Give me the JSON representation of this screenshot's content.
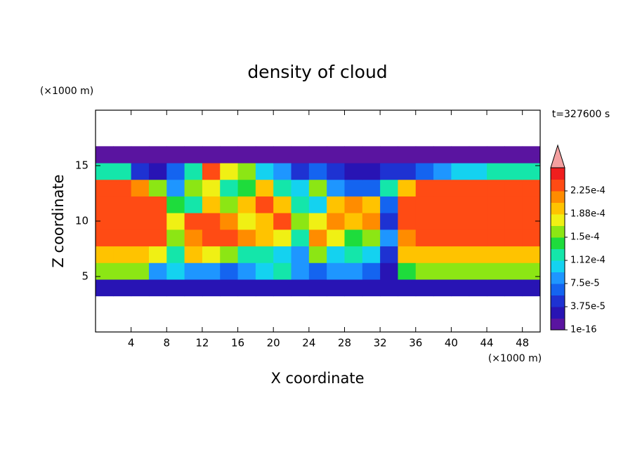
{
  "chart_data": {
    "type": "contour",
    "title": "density of cloud",
    "time_label": "t=327600 s",
    "x_label": "X coordinate",
    "y_label": "Z coordinate",
    "x_unit": "(×1000 m)",
    "y_unit": "(×1000 m)",
    "xlim": [
      0,
      50
    ],
    "ylim": [
      0,
      20
    ],
    "xticks": [
      4,
      8,
      12,
      16,
      20,
      24,
      28,
      32,
      36,
      40,
      44,
      48
    ],
    "yticks": [
      5,
      10,
      15
    ],
    "x": [
      1,
      3,
      5,
      7,
      9,
      11,
      13,
      15,
      17,
      19,
      21,
      23,
      25,
      27,
      29,
      31,
      33,
      35,
      37,
      39,
      41,
      43,
      45,
      47,
      49
    ],
    "y": [
      4,
      5.5,
      7,
      8.5,
      10,
      11.5,
      13,
      14.5,
      16
    ],
    "z": [
      [
        3e-05,
        3e-05,
        3e-05,
        2e-05,
        3e-05,
        3e-05,
        3e-05,
        3e-05,
        3e-05,
        3e-05,
        3e-05,
        3e-05,
        3e-05,
        3e-05,
        3e-05,
        3e-05,
        2e-05,
        3e-05,
        3e-05,
        3e-05,
        3e-05,
        3e-05,
        3e-05,
        3e-05,
        3e-05
      ],
      [
        0.00015,
        0.00015,
        0.00015,
        8e-05,
        0.0001,
        9e-05,
        8e-05,
        7e-05,
        9e-05,
        0.0001,
        0.00012,
        8e-05,
        7e-05,
        8e-05,
        9e-05,
        7e-05,
        3e-05,
        0.00014,
        0.00015,
        0.00015,
        0.00015,
        0.00015,
        0.00015,
        0.00015,
        0.00015
      ],
      [
        0.0002,
        0.0002,
        0.0002,
        0.00018,
        0.00013,
        0.0002,
        0.00018,
        0.00015,
        0.00012,
        0.00013,
        0.0001,
        8e-05,
        0.00015,
        0.0001,
        0.00012,
        0.00011,
        4e-05,
        0.00019,
        0.0002,
        0.0002,
        0.0002,
        0.0002,
        0.0002,
        0.0002,
        0.0002
      ],
      [
        0.00023,
        0.00023,
        0.00023,
        0.00023,
        0.00016,
        0.00022,
        0.00023,
        0.00023,
        0.00022,
        0.00019,
        0.00018,
        0.00013,
        0.00022,
        0.00018,
        0.00014,
        0.00016,
        8e-05,
        0.00022,
        0.00023,
        0.00023,
        0.00023,
        0.00023,
        0.00023,
        0.00023,
        0.00023
      ],
      [
        0.00024,
        0.00024,
        0.00024,
        0.00024,
        0.00018,
        0.00023,
        0.00024,
        0.00022,
        0.00017,
        0.0002,
        0.00024,
        0.00015,
        0.00018,
        0.00022,
        0.0002,
        0.00022,
        5e-05,
        0.00023,
        0.00024,
        0.00024,
        0.00024,
        0.00024,
        0.00024,
        0.00024,
        0.00024
      ],
      [
        0.00024,
        0.00024,
        0.00024,
        0.00023,
        0.00014,
        0.00012,
        0.00019,
        0.00016,
        0.0002,
        0.00023,
        0.0002,
        0.00013,
        0.0001,
        0.0002,
        0.00022,
        0.00019,
        6e-05,
        0.00023,
        0.00024,
        0.00024,
        0.00024,
        0.00024,
        0.00024,
        0.00024,
        0.00024
      ],
      [
        0.00023,
        0.00023,
        0.00022,
        0.00016,
        8e-05,
        0.00015,
        0.00018,
        0.00012,
        0.00014,
        0.0002,
        0.00012,
        0.0001,
        0.00015,
        9e-05,
        6e-05,
        7e-05,
        0.00013,
        0.0002,
        0.00023,
        0.00024,
        0.00024,
        0.00023,
        0.00023,
        0.00023,
        0.00023
      ],
      [
        0.00013,
        0.00013,
        5e-05,
        3e-05,
        6e-05,
        0.00012,
        0.00023,
        0.00018,
        0.00015,
        0.0001,
        8e-05,
        5e-05,
        6e-05,
        4e-05,
        3e-05,
        3e-05,
        4e-05,
        5e-05,
        6e-05,
        8e-05,
        0.0001,
        0.00011,
        0.00012,
        0.00013,
        0.00013
      ],
      [
        1e-05,
        1e-05,
        1e-05,
        1e-05,
        1e-05,
        1e-05,
        1e-05,
        1e-05,
        1e-05,
        1e-05,
        1e-05,
        1e-05,
        1e-05,
        1e-05,
        1e-05,
        1e-05,
        1e-05,
        1e-05,
        1e-05,
        1e-05,
        1e-05,
        1e-05,
        1e-05,
        1e-05,
        1e-05
      ]
    ],
    "levels": [
      1e-16,
      1.875e-05,
      3.75e-05,
      5.625e-05,
      7.5e-05,
      9.375e-05,
      0.0001125,
      0.00013125,
      0.00015,
      0.00016875,
      0.0001875,
      0.00020625,
      0.000225,
      0.00024375,
      0.0002625
    ],
    "colors": [
      "#5a14a0",
      "#2814b4",
      "#1e32d2",
      "#1464f0",
      "#1e96ff",
      "#14d2f0",
      "#14e6aa",
      "#1edc3c",
      "#8ce614",
      "#f0f014",
      "#ffc300",
      "#ff8c00",
      "#ff4b14",
      "#f01e1e"
    ],
    "extend_color": "#f4a0a0",
    "colorbar_ticks": [
      {
        "value": 1e-16,
        "label": "1e-16"
      },
      {
        "value": 3.75e-05,
        "label": "3.75e-5"
      },
      {
        "value": 7.5e-05,
        "label": "7.5e-5"
      },
      {
        "value": 0.0001125,
        "label": "1.12e-4"
      },
      {
        "value": 0.00015,
        "label": "1.5e-4"
      },
      {
        "value": 0.0001875,
        "label": "1.88e-4"
      },
      {
        "value": 0.000225,
        "label": "2.25e-4"
      }
    ]
  }
}
